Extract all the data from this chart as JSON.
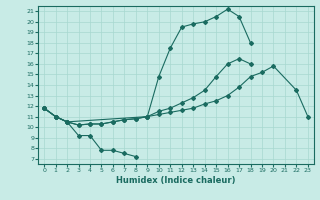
{
  "title": "",
  "xlabel": "Humidex (Indice chaleur)",
  "bg_color": "#c8ebe6",
  "line_color": "#1a6b60",
  "grid_color": "#a8d8d0",
  "xlim": [
    -0.5,
    23.5
  ],
  "ylim": [
    6.5,
    21.5
  ],
  "yticks": [
    7,
    8,
    9,
    10,
    11,
    12,
    13,
    14,
    15,
    16,
    17,
    18,
    19,
    20,
    21
  ],
  "xticks": [
    0,
    1,
    2,
    3,
    4,
    5,
    6,
    7,
    8,
    9,
    10,
    11,
    12,
    13,
    14,
    15,
    16,
    17,
    18,
    19,
    20,
    21,
    22,
    23
  ],
  "line1_x": [
    0,
    1,
    2,
    3,
    4,
    5,
    6,
    7,
    8
  ],
  "line1_y": [
    11.8,
    11.0,
    10.5,
    9.2,
    9.2,
    7.8,
    7.8,
    7.5,
    7.2
  ],
  "line2_x": [
    0,
    1,
    2,
    3,
    4,
    5,
    6,
    7,
    8,
    9,
    10,
    11,
    12,
    13,
    14,
    15,
    16,
    17,
    18,
    19,
    20,
    22,
    23
  ],
  "line2_y": [
    11.8,
    11.0,
    10.5,
    10.2,
    10.3,
    10.3,
    10.5,
    10.7,
    10.8,
    11.0,
    11.2,
    11.4,
    11.6,
    11.8,
    12.2,
    12.5,
    13.0,
    13.8,
    14.8,
    15.2,
    15.8,
    13.5,
    11.0
  ],
  "line3_x": [
    0,
    1,
    2,
    3,
    4,
    5,
    6,
    7,
    8,
    9,
    10,
    11,
    12,
    13,
    14,
    15,
    16,
    17,
    18,
    19,
    20,
    22,
    23
  ],
  "line3_y": [
    11.8,
    11.0,
    10.5,
    10.2,
    10.3,
    10.3,
    10.5,
    10.7,
    10.8,
    11.0,
    11.5,
    11.8,
    12.3,
    12.8,
    13.5,
    14.8,
    16.0,
    16.5,
    16.0,
    null,
    null,
    null,
    null
  ],
  "line4_x": [
    0,
    1,
    2,
    9,
    10,
    11,
    12,
    13,
    14,
    15,
    16,
    17,
    18,
    19,
    20,
    22,
    23
  ],
  "line4_y": [
    11.8,
    11.0,
    10.5,
    11.0,
    14.8,
    17.5,
    19.5,
    19.8,
    20.0,
    20.5,
    21.2,
    20.5,
    18.0,
    null,
    null,
    null,
    null
  ]
}
